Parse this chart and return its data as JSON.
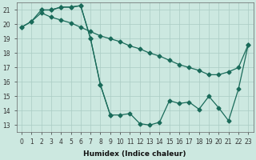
{
  "xlabel": "Humidex (Indice chaleur)",
  "bg_color": "#cce8e0",
  "grid_color": "#aaccc4",
  "line_color": "#1a6b5a",
  "xlim": [
    -0.5,
    23.5
  ],
  "ylim": [
    12.5,
    21.5
  ],
  "xticks": [
    0,
    1,
    2,
    3,
    4,
    5,
    6,
    7,
    8,
    9,
    10,
    11,
    12,
    13,
    14,
    15,
    16,
    17,
    18,
    19,
    20,
    21,
    22,
    23
  ],
  "yticks": [
    13,
    14,
    15,
    16,
    17,
    18,
    19,
    20,
    21
  ],
  "line1_x": [
    0,
    1,
    2,
    3,
    4,
    5,
    6,
    7,
    8,
    9,
    10,
    11,
    12,
    13,
    14,
    15,
    16,
    17,
    18,
    19,
    20,
    21,
    22,
    23
  ],
  "line1_y": [
    19.8,
    20.2,
    21.0,
    21.0,
    21.2,
    21.2,
    21.3,
    19.0,
    15.8,
    13.7,
    13.7,
    13.8,
    13.1,
    13.0,
    13.2,
    14.7,
    14.5,
    14.6,
    14.1,
    15.0,
    14.2,
    13.3,
    15.5,
    18.6
  ],
  "line2_x": [
    0,
    1,
    2,
    3,
    4,
    5,
    6,
    7,
    8,
    9,
    10,
    11,
    12,
    13,
    14,
    15,
    16,
    17,
    18,
    19,
    20,
    21,
    22,
    23
  ],
  "line2_y": [
    19.8,
    20.2,
    20.8,
    20.5,
    20.3,
    20.1,
    19.8,
    19.5,
    19.2,
    19.0,
    18.8,
    18.5,
    18.3,
    18.0,
    17.8,
    17.5,
    17.2,
    17.0,
    16.8,
    16.5,
    16.5,
    16.7,
    17.0,
    18.6
  ],
  "line3_x": [
    2,
    3,
    4,
    5,
    6,
    7,
    8,
    9
  ],
  "line3_y": [
    21.0,
    21.0,
    21.2,
    21.2,
    21.3,
    19.0,
    15.8,
    13.7
  ],
  "marker_size": 2.5,
  "line_width": 0.9,
  "tick_fontsize": 5.5,
  "xlabel_fontsize": 6.5
}
